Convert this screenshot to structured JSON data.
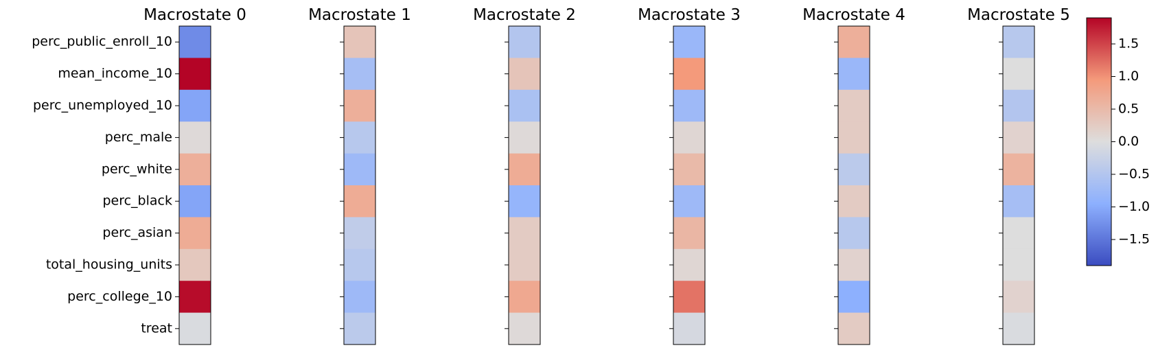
{
  "chart_data": {
    "type": "heatmap",
    "colormap": "coolwarm",
    "vmin": -1.9,
    "vmax": 1.9,
    "rows": [
      "perc_public_enroll_10",
      "mean_income_10",
      "perc_unemployed_10",
      "perc_male",
      "perc_white",
      "perc_black",
      "perc_asian",
      "total_housing_units",
      "perc_college_10",
      "treat"
    ],
    "panels": [
      {
        "title": "Macrostate 0",
        "values": [
          -1.3,
          1.9,
          -1.05,
          0.05,
          0.65,
          -1.05,
          0.7,
          0.3,
          1.85,
          -0.05
        ]
      },
      {
        "title": "Macrostate 1",
        "values": [
          0.35,
          -0.65,
          0.65,
          -0.45,
          -0.75,
          0.7,
          -0.35,
          -0.45,
          -0.75,
          -0.4
        ]
      },
      {
        "title": "Macrostate 2",
        "values": [
          -0.5,
          0.35,
          -0.6,
          0.05,
          0.7,
          -0.85,
          0.25,
          0.25,
          0.75,
          0.05
        ]
      },
      {
        "title": "Macrostate 3",
        "values": [
          -0.8,
          0.95,
          -0.75,
          0.1,
          0.5,
          -0.75,
          0.55,
          0.1,
          1.2,
          -0.1
        ]
      },
      {
        "title": "Macrostate 4",
        "values": [
          0.65,
          -0.8,
          0.25,
          0.25,
          -0.4,
          0.25,
          -0.45,
          0.15,
          -0.95,
          0.25
        ]
      },
      {
        "title": "Macrostate 5",
        "values": [
          -0.45,
          0.0,
          -0.5,
          0.15,
          0.6,
          -0.65,
          0.0,
          0.0,
          0.15,
          -0.05
        ]
      }
    ],
    "colorbar": {
      "ticks": [
        "1.5",
        "1.0",
        "0.5",
        "0.0",
        "−0.5",
        "−1.0",
        "−1.5"
      ],
      "tick_values": [
        1.5,
        1.0,
        0.5,
        0.0,
        -0.5,
        -1.0,
        -1.5
      ]
    }
  }
}
